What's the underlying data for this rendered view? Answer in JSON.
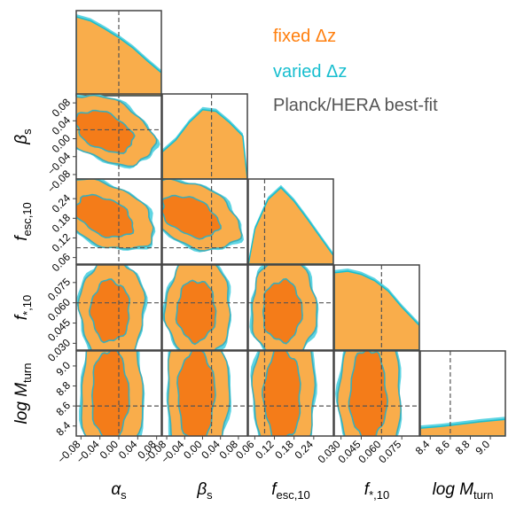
{
  "chart_data": {
    "type": "corner",
    "parameters": [
      {
        "label": "α_s",
        "ticks": [
          "−0.08",
          "−0.04",
          "0.00",
          "0.04",
          "0.08"
        ],
        "range": [
          -0.09,
          0.09
        ],
        "truth": 0.0
      },
      {
        "label": "β_s",
        "ticks": [
          "−0.08",
          "−0.04",
          "0.00",
          "0.04",
          "0.08"
        ],
        "range": [
          -0.09,
          0.1
        ],
        "truth": 0.02
      },
      {
        "label": "f_esc,10",
        "ticks": [
          "0.06",
          "0.12",
          "0.18",
          "0.24"
        ],
        "range": [
          0.04,
          0.3
        ],
        "truth": 0.09
      },
      {
        "label": "f_*,10",
        "ticks": [
          "0.030",
          "0.045",
          "0.060",
          "0.075"
        ],
        "range": [
          0.025,
          0.088
        ],
        "truth": 0.06
      },
      {
        "label": "log M_turn",
        "ticks": [
          "8.4",
          "8.6",
          "8.8",
          "9.0"
        ],
        "range": [
          8.3,
          9.15
        ],
        "truth": 8.6
      }
    ],
    "series": [
      {
        "name": "fixed Δz",
        "color": "#ff7f0e",
        "fill_outer": "#f9ad4b",
        "fill_inner": "#f47c19"
      },
      {
        "name": "varied Δz",
        "color": "#17becf",
        "fill_outer": "#5ed4e2",
        "fill_inner": "#3aaebb"
      }
    ],
    "truth_label": "Planck/HERA best-fit",
    "truth_color": "#555555",
    "marginals": [
      {
        "param": "α_s",
        "x": [
          -0.09,
          -0.06,
          -0.03,
          0.0,
          0.03,
          0.06,
          0.09
        ],
        "density": [
          1.0,
          0.95,
          0.85,
          0.74,
          0.61,
          0.45,
          0.3
        ]
      },
      {
        "param": "β_s",
        "x": [
          -0.09,
          -0.06,
          -0.03,
          0.0,
          0.03,
          0.06,
          0.09
        ],
        "density": [
          0.35,
          0.5,
          0.72,
          0.88,
          0.86,
          0.72,
          0.55
        ]
      },
      {
        "param": "f_esc,10",
        "x": [
          0.04,
          0.06,
          0.1,
          0.14,
          0.18,
          0.22,
          0.26,
          0.3
        ],
        "density": [
          0.0,
          0.45,
          0.82,
          0.97,
          0.8,
          0.58,
          0.35,
          0.12
        ]
      },
      {
        "param": "f_*,10",
        "x": [
          0.025,
          0.035,
          0.045,
          0.055,
          0.065,
          0.075,
          0.088
        ],
        "density": [
          0.98,
          1.0,
          0.96,
          0.88,
          0.75,
          0.55,
          0.32
        ]
      },
      {
        "param": "log M_turn",
        "x": [
          8.3,
          8.5,
          8.7,
          8.9,
          9.15
        ],
        "density": [
          0.11,
          0.13,
          0.16,
          0.19,
          0.22
        ]
      }
    ]
  },
  "legend": {
    "fixed": "fixed Δz",
    "varied": "varied Δz",
    "truth": "Planck/HERA best-fit"
  }
}
